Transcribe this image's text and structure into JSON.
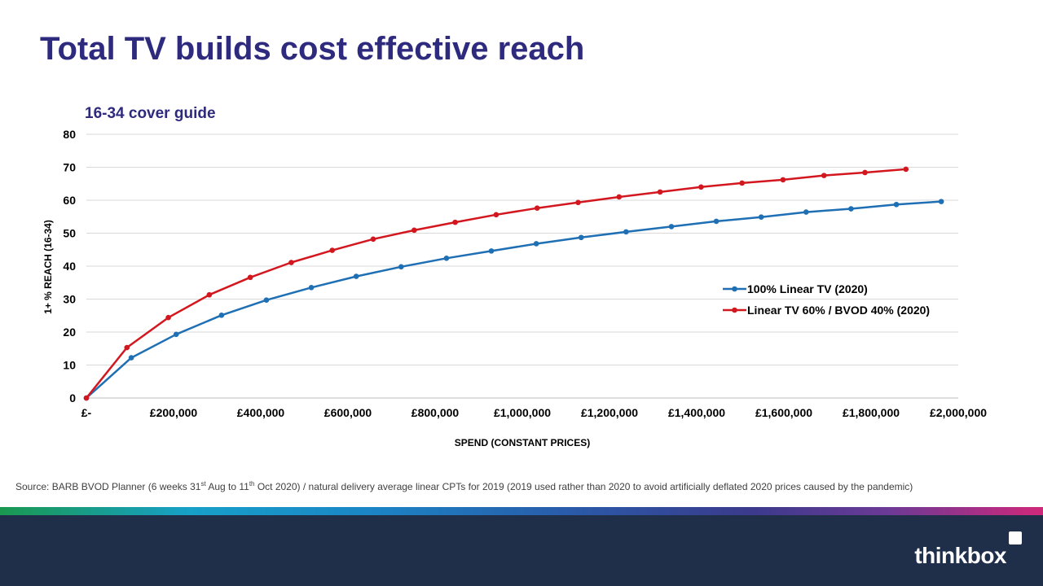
{
  "slide": {
    "title": "Total TV builds cost effective reach",
    "source_parts": {
      "a": "Source: BARB BVOD Planner (6 weeks 31",
      "sup1": "st",
      "b": " Aug to 11",
      "sup2": "th",
      "c": " Oct 2020) / natural delivery average  linear CPTs for 2019 (2019 used rather than 2020 to avoid  artificially deflated 2020 prices caused by the pandemic)"
    },
    "brand": "thinkbox"
  },
  "chart_data": {
    "type": "line",
    "title": "16-34 cover guide",
    "xlabel": "SPEND (CONSTANT PRICES)",
    "ylabel": "1+ % REACH  (16-34)",
    "xlim": [
      0,
      2000000
    ],
    "ylim": [
      0,
      80
    ],
    "x_ticks": [
      0,
      200000,
      400000,
      600000,
      800000,
      1000000,
      1200000,
      1400000,
      1600000,
      1800000,
      2000000
    ],
    "x_tick_labels": [
      "£-",
      "£200,000",
      "£400,000",
      "£600,000",
      "£800,000",
      "£1,000,000",
      "£1,200,000",
      "£1,400,000",
      "£1,600,000",
      "£1,800,000",
      "£2,000,000"
    ],
    "y_ticks": [
      0,
      10,
      20,
      30,
      40,
      50,
      60,
      70,
      80
    ],
    "y_tick_labels": [
      "0",
      "10",
      "20",
      "30",
      "40",
      "50",
      "60",
      "70",
      "80"
    ],
    "grid": "horizontal",
    "legend_position": "right",
    "series": [
      {
        "name": "100% Linear TV (2020)",
        "color": "#1f6fb4",
        "x": [
          0,
          103000,
          206000,
          310000,
          413000,
          516000,
          619000,
          722000,
          826000,
          929000,
          1032000,
          1135000,
          1238000,
          1342000,
          1445000,
          1548000,
          1651000,
          1754000,
          1858000,
          1961000
        ],
        "y": [
          0,
          12.2,
          19.3,
          25.1,
          29.7,
          33.5,
          36.9,
          39.8,
          42.4,
          44.6,
          46.8,
          48.7,
          50.4,
          52.0,
          53.6,
          54.9,
          56.4,
          57.4,
          58.7,
          59.6
        ]
      },
      {
        "name": "Linear TV 60% / BVOD 40% (2020)",
        "color": "#d3171f",
        "x": [
          0,
          93000,
          188000,
          282000,
          376000,
          470000,
          564000,
          658000,
          752000,
          846000,
          940000,
          1034000,
          1128000,
          1222000,
          1316000,
          1410000,
          1504000,
          1598000,
          1692000,
          1786000,
          1880000
        ],
        "y": [
          0,
          15.3,
          24.4,
          31.3,
          36.6,
          41.1,
          44.8,
          48.2,
          50.9,
          53.3,
          55.6,
          57.6,
          59.3,
          61.0,
          62.5,
          64.0,
          65.2,
          66.2,
          67.5,
          68.4,
          69.4
        ]
      }
    ]
  }
}
